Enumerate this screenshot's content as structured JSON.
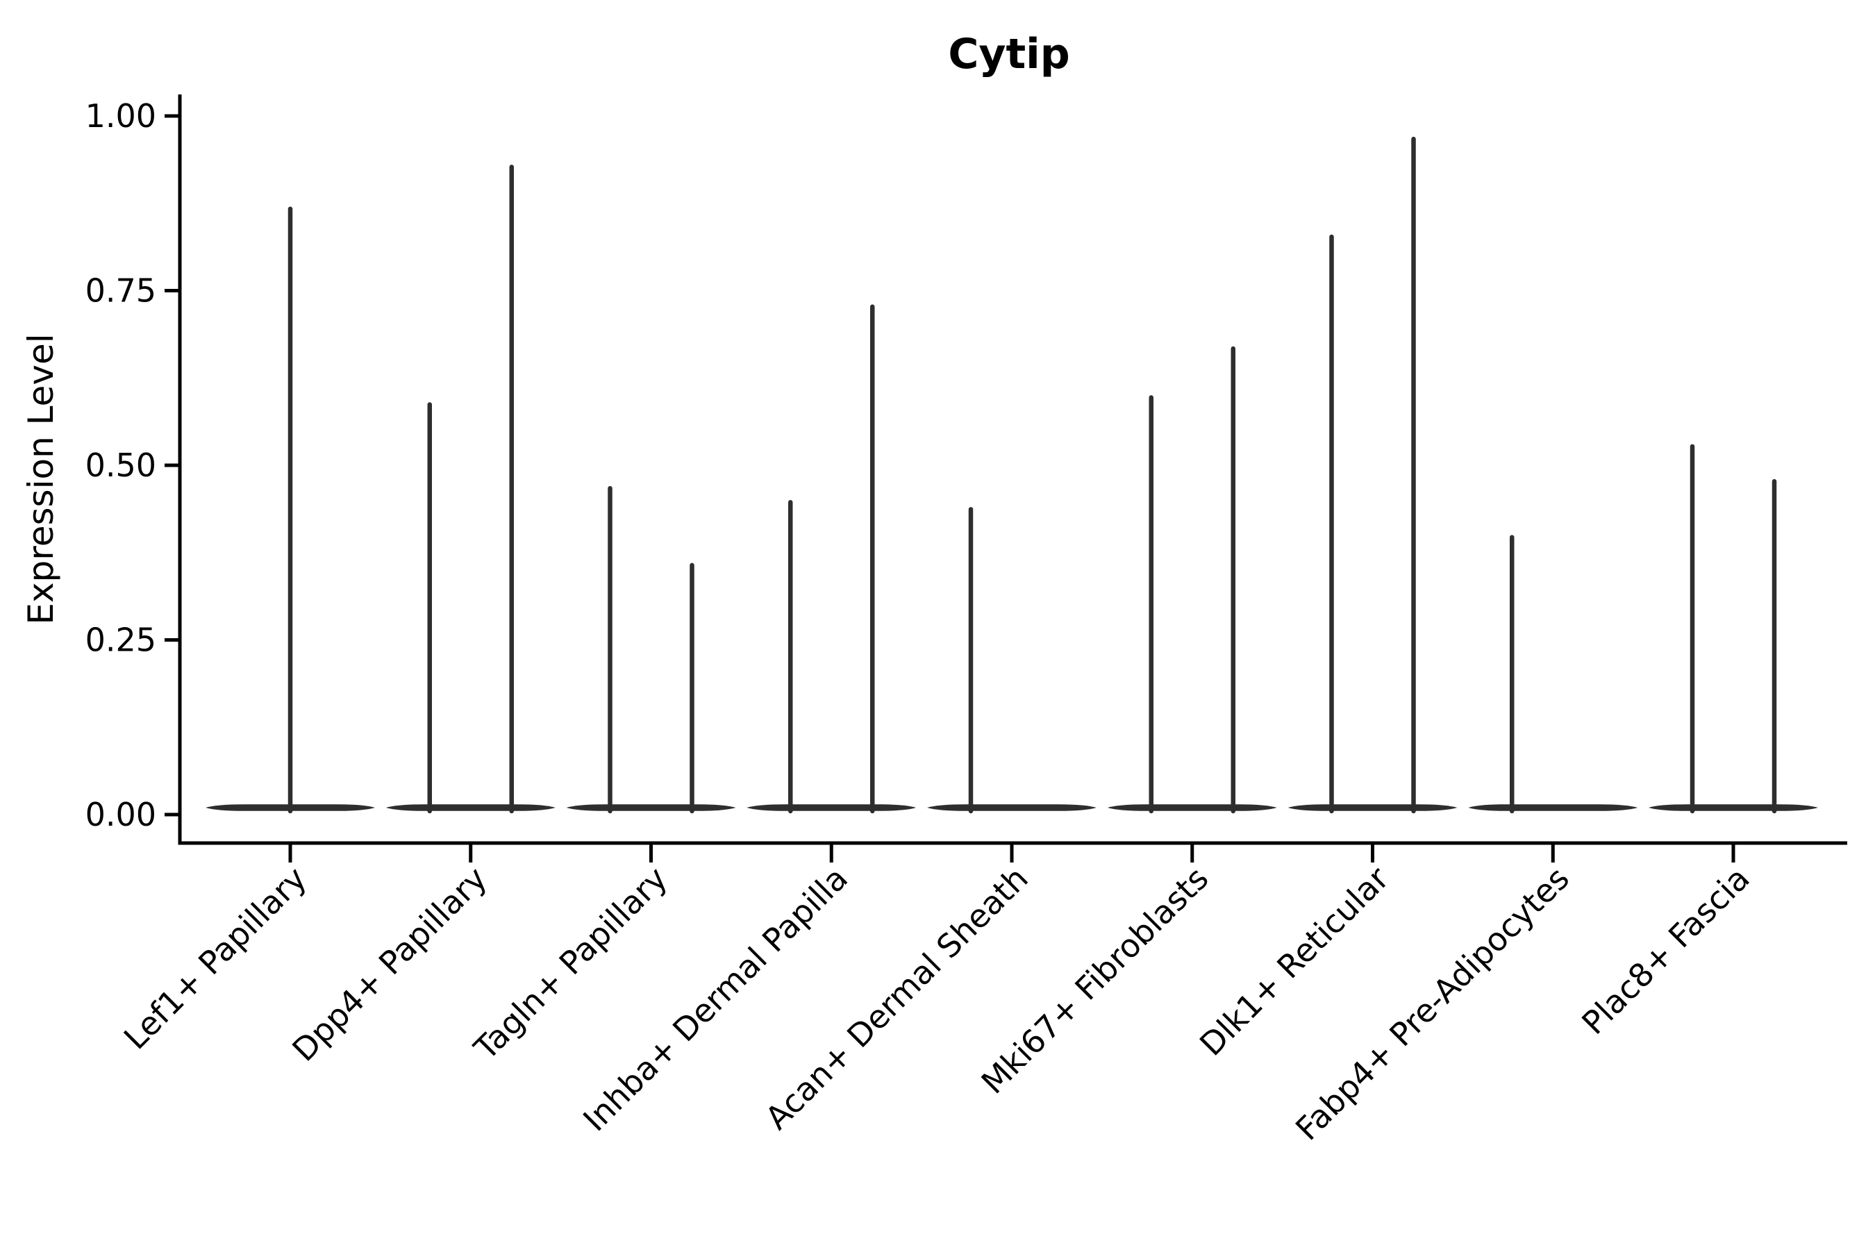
{
  "title": "Cytip",
  "colors": {
    "violin": "#2e2e2e",
    "axis": "#000000",
    "text": "#000000",
    "background": "#ffffff"
  },
  "chart_data": {
    "type": "violin",
    "title": "Cytip",
    "xlabel": "",
    "ylabel": "Expression Level",
    "ylim": [
      0.0,
      1.0
    ],
    "y_ticks": [
      0.0,
      0.25,
      0.5,
      0.75,
      1.0
    ],
    "y_tick_labels": [
      "0.00",
      "0.25",
      "0.50",
      "0.75",
      "1.00"
    ],
    "grid": false,
    "legend": "none",
    "x_tick_rotation_deg": 45,
    "categories": [
      "Lef1+ Papillary",
      "Dpp4+ Papillary",
      "Tagln+ Papillary",
      "Inhba+ Dermal Papilla",
      "Acan+ Dermal Sheath",
      "Mki67+ Fibroblasts",
      "Dlk1+ Reticular",
      "Fabp4+ Pre-Adipocytes",
      "Plac8+ Fascia"
    ],
    "violins": [
      {
        "category": "Lef1+ Papillary",
        "spikes": [
          {
            "offset": "center",
            "max": 0.87
          }
        ]
      },
      {
        "category": "Dpp4+ Papillary",
        "spikes": [
          {
            "offset": "left",
            "max": 0.59
          },
          {
            "offset": "right",
            "max": 0.93
          }
        ]
      },
      {
        "category": "Tagln+ Papillary",
        "spikes": [
          {
            "offset": "left",
            "max": 0.47
          },
          {
            "offset": "right",
            "max": 0.36
          }
        ]
      },
      {
        "category": "Inhba+ Dermal Papilla",
        "spikes": [
          {
            "offset": "left",
            "max": 0.45
          },
          {
            "offset": "right",
            "max": 0.73
          }
        ]
      },
      {
        "category": "Acan+ Dermal Sheath",
        "spikes": [
          {
            "offset": "left",
            "max": 0.44
          }
        ]
      },
      {
        "category": "Mki67+ Fibroblasts",
        "spikes": [
          {
            "offset": "left",
            "max": 0.6
          },
          {
            "offset": "right",
            "max": 0.67
          }
        ]
      },
      {
        "category": "Dlk1+ Reticular",
        "spikes": [
          {
            "offset": "left",
            "max": 0.83
          },
          {
            "offset": "right",
            "max": 0.97
          }
        ]
      },
      {
        "category": "Fabp4+ Pre-Adipocytes",
        "spikes": [
          {
            "offset": "left",
            "max": 0.4
          }
        ]
      },
      {
        "category": "Plac8+ Fascia",
        "spikes": [
          {
            "offset": "left",
            "max": 0.53
          },
          {
            "offset": "right",
            "max": 0.48
          }
        ]
      }
    ]
  }
}
